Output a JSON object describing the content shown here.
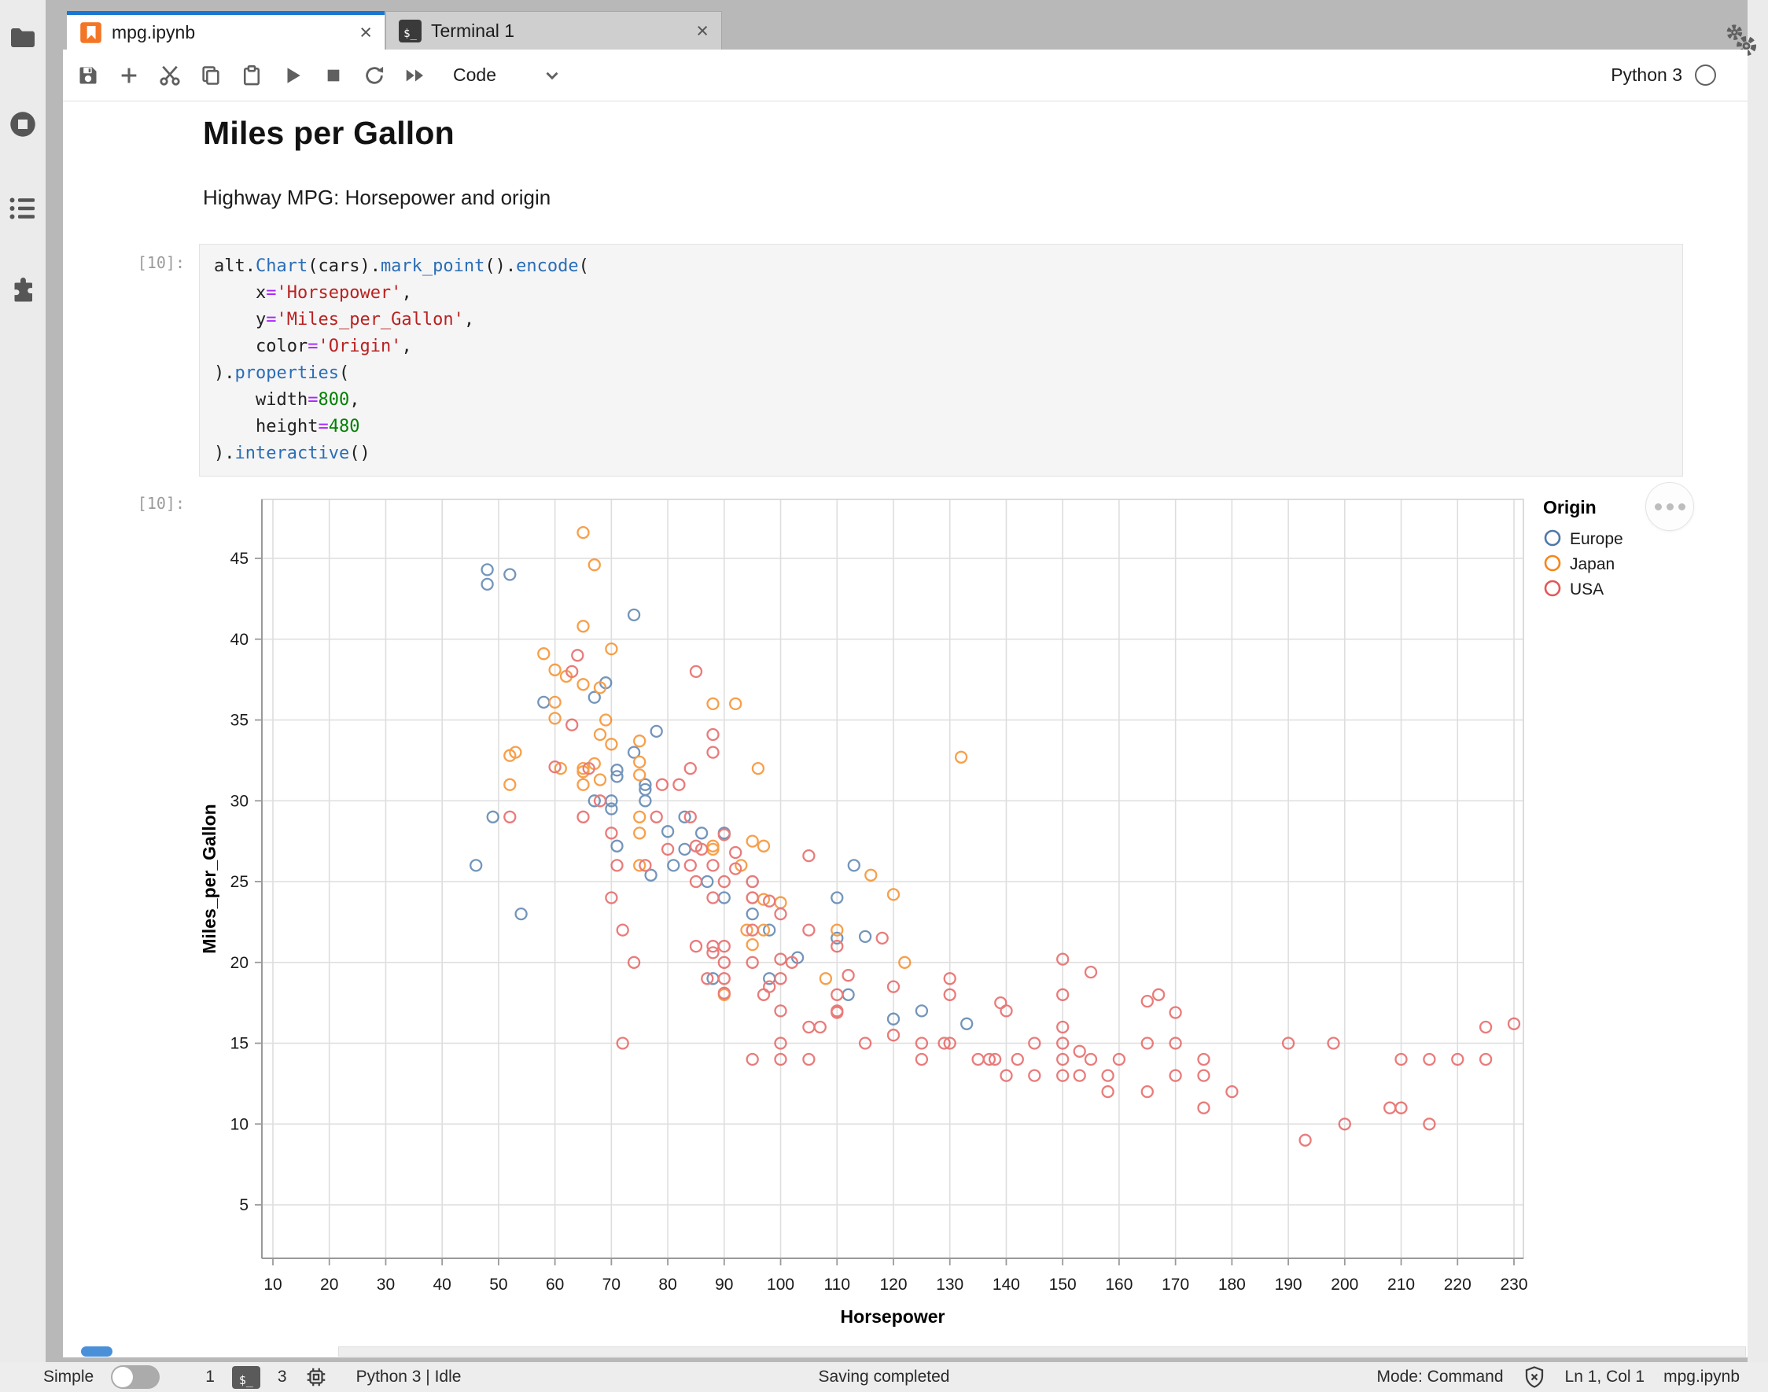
{
  "brand_color": "#1976d2",
  "sidebar": {
    "items": [
      {
        "icon": "file-browser-icon"
      },
      {
        "icon": "running-sessions-icon"
      },
      {
        "icon": "table-of-contents-icon"
      },
      {
        "icon": "extension-manager-icon"
      }
    ]
  },
  "right_panel": {
    "icon": "settings-gears-icon"
  },
  "tabs": [
    {
      "label": "mpg.ipynb",
      "icon": "notebook-icon",
      "active": true,
      "close_symbol": "×"
    },
    {
      "label": "Terminal 1",
      "icon": "terminal-icon",
      "active": false,
      "close_symbol": "×"
    }
  ],
  "toolbar": {
    "buttons": [
      "save",
      "insert-cell",
      "cut-cells",
      "copy-cells",
      "paste-cells",
      "run-cell",
      "interrupt-kernel",
      "restart-kernel",
      "restart-and-run-all"
    ],
    "cell_type": "Code",
    "kernel_name": "Python 3"
  },
  "notebook": {
    "title": "Miles per Gallon",
    "subtitle": "Highway MPG: Horsepower and origin",
    "input_prompt": "[10]:",
    "output_prompt": "[10]:",
    "code_colors": {
      "p": "#212121",
      "f": "#2a6db6",
      "o": "#aa22ff",
      "s": "#ba2121",
      "n": "#008000"
    },
    "code_lines": [
      [
        [
          "alt.",
          "p"
        ],
        [
          "Chart",
          "f"
        ],
        [
          "(cars).",
          "p"
        ],
        [
          "mark_point",
          "f"
        ],
        [
          "().",
          "p"
        ],
        [
          "encode",
          "f"
        ],
        [
          "(",
          "p"
        ]
      ],
      [
        [
          "    x",
          "p"
        ],
        [
          "=",
          "o"
        ],
        [
          "'Horsepower'",
          "s"
        ],
        [
          ",",
          "p"
        ]
      ],
      [
        [
          "    y",
          "p"
        ],
        [
          "=",
          "o"
        ],
        [
          "'Miles_per_Gallon'",
          "s"
        ],
        [
          ",",
          "p"
        ]
      ],
      [
        [
          "    color",
          "p"
        ],
        [
          "=",
          "o"
        ],
        [
          "'Origin'",
          "s"
        ],
        [
          ",",
          "p"
        ]
      ],
      [
        [
          ").",
          "p"
        ],
        [
          "properties",
          "f"
        ],
        [
          "(",
          "p"
        ]
      ],
      [
        [
          "    width",
          "p"
        ],
        [
          "=",
          "o"
        ],
        [
          "800",
          "n"
        ],
        [
          ",",
          "p"
        ]
      ],
      [
        [
          "    height",
          "p"
        ],
        [
          "=",
          "o"
        ],
        [
          "480",
          "n"
        ]
      ],
      [
        [
          ").",
          "p"
        ],
        [
          "interactive",
          "f"
        ],
        [
          "()",
          "p"
        ]
      ]
    ]
  },
  "chart_data": {
    "type": "scatter",
    "xlabel": "Horsepower",
    "ylabel": "Miles_per_Gallon",
    "xlim": [
      8,
      231
    ],
    "ylim": [
      1.5,
      48.5
    ],
    "grid": true,
    "x_ticks": [
      10,
      20,
      30,
      40,
      50,
      60,
      70,
      80,
      90,
      100,
      110,
      120,
      130,
      140,
      150,
      160,
      170,
      180,
      190,
      200,
      210,
      220,
      230
    ],
    "y_ticks": [
      5,
      10,
      15,
      20,
      25,
      30,
      35,
      40,
      45
    ],
    "legend": {
      "title": "Origin",
      "position": "top-right",
      "items": [
        {
          "label": "Europe",
          "color": "#4c78a8"
        },
        {
          "label": "Japan",
          "color": "#f58518"
        },
        {
          "label": "USA",
          "color": "#e45756"
        }
      ]
    },
    "series": [
      {
        "name": "Europe",
        "color": "#4c78a8",
        "points": [
          [
            46,
            26
          ],
          [
            48,
            43.4
          ],
          [
            48,
            44.3
          ],
          [
            52,
            44
          ],
          [
            54,
            23
          ],
          [
            58,
            36.1
          ],
          [
            49,
            29
          ],
          [
            67,
            36.4
          ],
          [
            67,
            30
          ],
          [
            69,
            37.3
          ],
          [
            70,
            30
          ],
          [
            70,
            29.5
          ],
          [
            71,
            27.2
          ],
          [
            71,
            31.5
          ],
          [
            71,
            31.9
          ],
          [
            74,
            33
          ],
          [
            74,
            41.5
          ],
          [
            76,
            30
          ],
          [
            76,
            30.7
          ],
          [
            76,
            31
          ],
          [
            77,
            25.4
          ],
          [
            78,
            34.3
          ],
          [
            80,
            28.1
          ],
          [
            81,
            26
          ],
          [
            83,
            27
          ],
          [
            83,
            29
          ],
          [
            86,
            28
          ],
          [
            87,
            25
          ],
          [
            88,
            19
          ],
          [
            90,
            24
          ],
          [
            90,
            28
          ],
          [
            95,
            25
          ],
          [
            95,
            23
          ],
          [
            98,
            19
          ],
          [
            98,
            22
          ],
          [
            103,
            20.3
          ],
          [
            110,
            21.5
          ],
          [
            110,
            24
          ],
          [
            112,
            18
          ],
          [
            113,
            26
          ],
          [
            115,
            21.6
          ],
          [
            120,
            16.5
          ],
          [
            125,
            17
          ],
          [
            133,
            16.2
          ]
        ]
      },
      {
        "name": "Japan",
        "color": "#f58518",
        "points": [
          [
            52,
            31
          ],
          [
            52,
            32.8
          ],
          [
            53,
            33
          ],
          [
            58,
            39.1
          ],
          [
            60,
            35.1
          ],
          [
            60,
            36.1
          ],
          [
            60,
            38.1
          ],
          [
            61,
            32
          ],
          [
            62,
            37.7
          ],
          [
            65,
            31
          ],
          [
            65,
            31.8
          ],
          [
            65,
            32
          ],
          [
            65,
            37.2
          ],
          [
            65,
            40.8
          ],
          [
            65,
            46.6
          ],
          [
            67,
            32.3
          ],
          [
            67,
            44.6
          ],
          [
            68,
            31.3
          ],
          [
            68,
            34.1
          ],
          [
            68,
            37
          ],
          [
            69,
            35
          ],
          [
            70,
            33.5
          ],
          [
            70,
            39.4
          ],
          [
            75,
            26
          ],
          [
            75,
            28
          ],
          [
            75,
            29
          ],
          [
            75,
            31.6
          ],
          [
            75,
            32.4
          ],
          [
            75,
            33.7
          ],
          [
            88,
            27
          ],
          [
            88,
            27.2
          ],
          [
            88,
            36
          ],
          [
            90,
            18
          ],
          [
            92,
            36
          ],
          [
            93,
            26
          ],
          [
            94,
            22
          ],
          [
            95,
            21.1
          ],
          [
            95,
            24
          ],
          [
            95,
            27.5
          ],
          [
            96,
            32
          ],
          [
            97,
            22
          ],
          [
            97,
            23.9
          ],
          [
            97,
            27.2
          ],
          [
            100,
            23.7
          ],
          [
            108,
            19
          ],
          [
            110,
            22
          ],
          [
            116,
            25.4
          ],
          [
            120,
            24.2
          ],
          [
            122,
            20
          ],
          [
            132,
            32.7
          ]
        ]
      },
      {
        "name": "USA",
        "color": "#e45756",
        "points": [
          [
            52,
            29
          ],
          [
            60,
            32.1
          ],
          [
            63,
            34.7
          ],
          [
            63,
            38
          ],
          [
            64,
            39
          ],
          [
            65,
            29
          ],
          [
            66,
            32
          ],
          [
            68,
            30
          ],
          [
            70,
            24
          ],
          [
            70,
            28
          ],
          [
            71,
            26
          ],
          [
            72,
            15
          ],
          [
            72,
            22
          ],
          [
            74,
            20
          ],
          [
            76,
            26
          ],
          [
            78,
            29
          ],
          [
            79,
            31
          ],
          [
            80,
            27
          ],
          [
            82,
            31
          ],
          [
            84,
            26
          ],
          [
            84,
            29
          ],
          [
            84,
            32
          ],
          [
            85,
            21
          ],
          [
            85,
            25
          ],
          [
            85,
            27.2
          ],
          [
            85,
            38
          ],
          [
            86,
            27
          ],
          [
            87,
            19
          ],
          [
            88,
            20.6
          ],
          [
            88,
            21
          ],
          [
            88,
            24
          ],
          [
            88,
            26
          ],
          [
            88,
            33
          ],
          [
            88,
            34.1
          ],
          [
            90,
            18.1
          ],
          [
            90,
            19
          ],
          [
            90,
            20
          ],
          [
            90,
            21
          ],
          [
            90,
            25
          ],
          [
            90,
            27.9
          ],
          [
            92,
            25.8
          ],
          [
            92,
            26.8
          ],
          [
            95,
            14
          ],
          [
            95,
            20
          ],
          [
            95,
            22
          ],
          [
            95,
            24
          ],
          [
            95,
            25
          ],
          [
            97,
            18
          ],
          [
            98,
            18.5
          ],
          [
            98,
            23.8
          ],
          [
            100,
            14
          ],
          [
            100,
            15
          ],
          [
            100,
            17
          ],
          [
            100,
            19
          ],
          [
            100,
            20.2
          ],
          [
            100,
            23
          ],
          [
            102,
            20
          ],
          [
            105,
            14
          ],
          [
            105,
            16
          ],
          [
            105,
            22
          ],
          [
            105,
            26.6
          ],
          [
            107,
            16
          ],
          [
            110,
            16.9
          ],
          [
            110,
            17
          ],
          [
            110,
            18
          ],
          [
            110,
            21
          ],
          [
            112,
            19.2
          ],
          [
            115,
            15
          ],
          [
            118,
            21.5
          ],
          [
            120,
            15.5
          ],
          [
            120,
            18.5
          ],
          [
            125,
            14
          ],
          [
            125,
            15
          ],
          [
            129,
            15
          ],
          [
            130,
            15
          ],
          [
            130,
            18
          ],
          [
            130,
            19
          ],
          [
            135,
            14
          ],
          [
            137,
            14
          ],
          [
            138,
            14
          ],
          [
            139,
            17.5
          ],
          [
            140,
            13
          ],
          [
            140,
            17
          ],
          [
            142,
            14
          ],
          [
            145,
            13
          ],
          [
            145,
            15
          ],
          [
            150,
            13
          ],
          [
            150,
            14
          ],
          [
            150,
            15
          ],
          [
            150,
            16
          ],
          [
            150,
            18
          ],
          [
            150,
            20.2
          ],
          [
            153,
            13
          ],
          [
            153,
            14.5
          ],
          [
            155,
            14
          ],
          [
            155,
            19.4
          ],
          [
            158,
            12
          ],
          [
            158,
            13
          ],
          [
            160,
            14
          ],
          [
            165,
            12
          ],
          [
            165,
            15
          ],
          [
            165,
            17.6
          ],
          [
            167,
            18
          ],
          [
            170,
            13
          ],
          [
            170,
            15
          ],
          [
            170,
            16.9
          ],
          [
            175,
            11
          ],
          [
            175,
            13
          ],
          [
            175,
            14
          ],
          [
            180,
            12
          ],
          [
            190,
            15
          ],
          [
            193,
            9
          ],
          [
            198,
            15
          ],
          [
            200,
            10
          ],
          [
            208,
            11
          ],
          [
            210,
            11
          ],
          [
            210,
            14
          ],
          [
            215,
            10
          ],
          [
            215,
            14
          ],
          [
            220,
            14
          ],
          [
            225,
            14
          ],
          [
            225,
            16
          ],
          [
            230,
            16.2
          ]
        ]
      }
    ]
  },
  "statusbar": {
    "simple_label": "Simple",
    "terminal_count": "1",
    "kernel_count": "3",
    "kernel_status": "Python 3 | Idle",
    "center_message": "Saving completed",
    "mode": "Mode: Command",
    "cursor_position": "Ln 1, Col 1",
    "filename": "mpg.ipynb"
  }
}
